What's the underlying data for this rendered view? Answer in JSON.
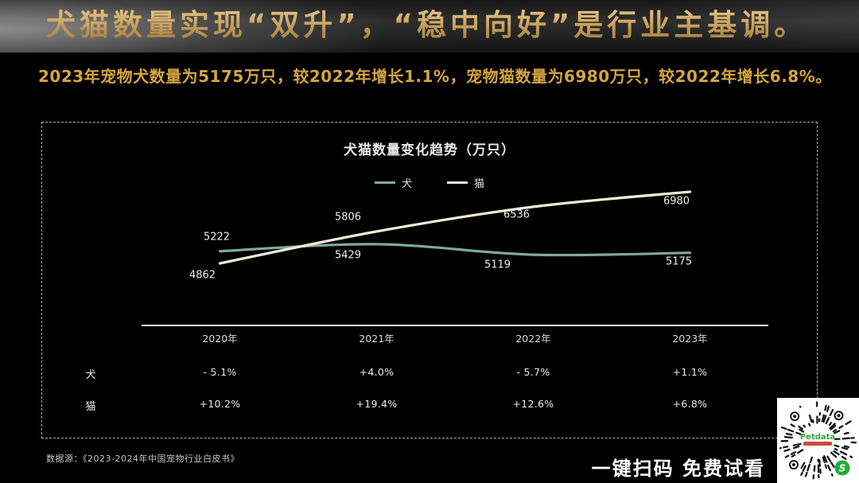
{
  "banner": {
    "title": "犬猫数量实现“双升”，“稳中向好”是行业主基调。"
  },
  "subtitle": {
    "text": "2023年宠物犬数量为5175万只，较2022年增长1.1%，宠物猫数量为6980万只，较2022年增长6.8%。"
  },
  "chart_data": {
    "type": "line",
    "title": "犬猫数量变化趋势（万只）",
    "categories": [
      "2020年",
      "2021年",
      "2022年",
      "2023年"
    ],
    "series": [
      {
        "name": "犬",
        "color": "#7FA99D",
        "values": [
          5222,
          5429,
          5119,
          5175
        ]
      },
      {
        "name": "猫",
        "color": "#F0E9D6",
        "values": [
          4862,
          5806,
          6536,
          6980
        ]
      }
    ],
    "ylim": [
      3027,
      9027
    ],
    "grid": false,
    "legend_position": "top-center",
    "xlabel": "",
    "ylabel": ""
  },
  "table": {
    "columns": [
      "2020年",
      "2021年",
      "2022年",
      "2023年"
    ],
    "rows": [
      {
        "label": "犬",
        "values": [
          "- 5.1%",
          "+4.0%",
          "- 5.7%",
          "+1.1%"
        ]
      },
      {
        "label": "猫",
        "values": [
          "+10.2%",
          "+19.4%",
          "+12.6%",
          "+6.8%"
        ]
      }
    ]
  },
  "footer": {
    "source": "数据源：《2023-2024年中国宠物行业白皮书》",
    "cta": "一键扫码 免费试看"
  },
  "qr": {
    "center_label": "Petdata",
    "badge_letter": "S",
    "green_badge": "#22AC38",
    "green_text": "#3BA63B",
    "red": "#C23B2B"
  },
  "colors": {
    "gold": "#D5A53F",
    "title_gold_light": "#EED79F",
    "title_gold_dark": "#A37C3D",
    "panel_border": "#ACACAC",
    "axis_line": "#F2F2F2",
    "text_light": "#EDEDED"
  }
}
